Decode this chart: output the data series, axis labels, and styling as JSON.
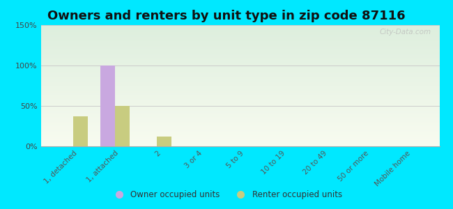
{
  "title": "Owners and renters by unit type in zip code 87116",
  "categories": [
    "1, detached",
    "1, attached",
    "2",
    "3 or 4",
    "5 to 9",
    "10 to 19",
    "20 to 49",
    "50 or more",
    "Mobile home"
  ],
  "owner_values": [
    0,
    100,
    0,
    0,
    0,
    0,
    0,
    0,
    0
  ],
  "renter_values": [
    37,
    50,
    12,
    0,
    0,
    0,
    0,
    0,
    0
  ],
  "owner_color": "#c9a8e0",
  "renter_color": "#c8cc80",
  "ylim": [
    0,
    150
  ],
  "yticks": [
    0,
    50,
    100,
    150
  ],
  "ytick_labels": [
    "0%",
    "50%",
    "100%",
    "150%"
  ],
  "bar_width": 0.35,
  "background_outer": "#00e8ff",
  "background_inner_top": "#ddeedd",
  "background_inner_bottom": "#f8fbf0",
  "grid_color": "#cccccc",
  "title_fontsize": 13,
  "legend_labels": [
    "Owner occupied units",
    "Renter occupied units"
  ],
  "watermark": "City-Data.com"
}
